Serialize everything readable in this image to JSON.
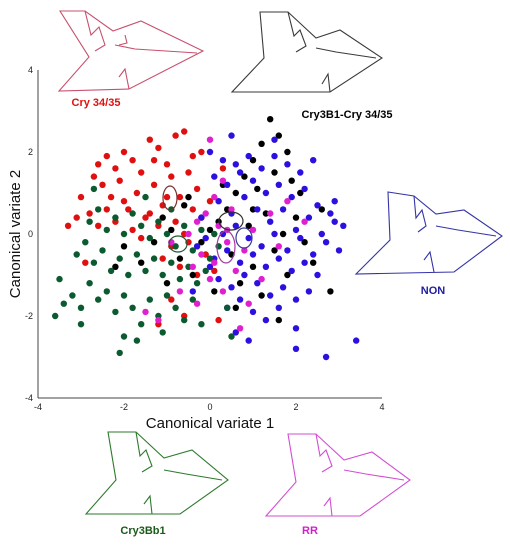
{
  "chart_data": {
    "type": "scatter",
    "title": "",
    "xlabel": "Canonical variate 1",
    "ylabel": "Canonical variate 2",
    "xlim": [
      -4,
      4
    ],
    "ylim": [
      -4,
      4
    ],
    "x_ticks": [
      "-4",
      "-2",
      "0",
      "2",
      "4"
    ],
    "y_ticks": [
      "4",
      "2",
      "0",
      "-2",
      "-4"
    ],
    "grid": false,
    "series": [
      {
        "name": "Cry 34/35",
        "color": "#e01010",
        "points": [
          [
            -2.6,
            1.7
          ],
          [
            -2.4,
            1.9
          ],
          [
            -2.2,
            1.6
          ],
          [
            -2.0,
            2.0
          ],
          [
            -1.8,
            1.8
          ],
          [
            -1.6,
            1.5
          ],
          [
            -1.4,
            2.3
          ],
          [
            -1.2,
            2.1
          ],
          [
            -1.0,
            1.7
          ],
          [
            -0.8,
            2.4
          ],
          [
            -0.6,
            2.5
          ],
          [
            -0.4,
            1.9
          ],
          [
            -2.5,
            1.2
          ],
          [
            -2.3,
            0.9
          ],
          [
            -2.1,
            1.3
          ],
          [
            -1.9,
            0.6
          ],
          [
            -1.7,
            1.0
          ],
          [
            -1.5,
            0.4
          ],
          [
            -1.3,
            1.2
          ],
          [
            -1.1,
            0.7
          ],
          [
            -0.9,
            1.4
          ],
          [
            -0.7,
            0.9
          ],
          [
            -0.5,
            1.5
          ],
          [
            -0.3,
            1.1
          ],
          [
            -3.0,
            0.9
          ],
          [
            -2.8,
            0.5
          ],
          [
            -2.6,
            0.2
          ],
          [
            -2.4,
            0.6
          ],
          [
            -2.2,
            0.3
          ],
          [
            -2.0,
            0.8
          ],
          [
            -1.8,
            0.1
          ],
          [
            -1.6,
            -0.1
          ],
          [
            -1.4,
            0.5
          ],
          [
            -1.2,
            0.2
          ],
          [
            -1.0,
            0.9
          ],
          [
            -0.8,
            0.3
          ],
          [
            -0.6,
            0.0
          ],
          [
            -0.4,
            0.6
          ],
          [
            -0.2,
            0.4
          ],
          [
            0.0,
            0.8
          ],
          [
            -1.1,
            -0.6
          ],
          [
            -0.9,
            -0.3
          ],
          [
            -0.7,
            -0.8
          ],
          [
            -0.5,
            -0.2
          ],
          [
            -0.3,
            -1.0
          ],
          [
            -0.1,
            -0.5
          ],
          [
            0.1,
            -0.9
          ],
          [
            -1.3,
            1.8
          ],
          [
            -0.2,
            2.0
          ],
          [
            -2.7,
            1.4
          ],
          [
            -3.3,
            0.2
          ],
          [
            -0.9,
            -1.6
          ],
          [
            -1.2,
            -2.2
          ],
          [
            0.2,
            -2.1
          ],
          [
            0.3,
            1.6
          ],
          [
            -0.6,
            -2.0
          ],
          [
            -2.9,
            -0.7
          ],
          [
            -3.1,
            0.4
          ]
        ]
      },
      {
        "name": "Cry3B1-Cry 34/35",
        "color": "#000000",
        "points": [
          [
            1.4,
            2.8
          ],
          [
            1.6,
            2.4
          ],
          [
            1.8,
            2.0
          ],
          [
            1.2,
            2.2
          ],
          [
            1.0,
            1.8
          ],
          [
            0.8,
            1.4
          ],
          [
            0.6,
            1.0
          ],
          [
            1.1,
            1.1
          ],
          [
            1.5,
            1.5
          ],
          [
            1.9,
            1.3
          ],
          [
            2.1,
            1.0
          ],
          [
            0.4,
            0.6
          ],
          [
            0.2,
            0.3
          ],
          [
            0.0,
            0.1
          ],
          [
            -0.2,
            -0.2
          ],
          [
            0.9,
            0.2
          ],
          [
            1.3,
            0.5
          ],
          [
            1.7,
            0.0
          ],
          [
            2.0,
            0.4
          ],
          [
            -0.6,
            0.7
          ],
          [
            -0.9,
            0.1
          ],
          [
            -1.1,
            0.4
          ],
          [
            -0.7,
            -0.6
          ],
          [
            -1.3,
            -0.2
          ],
          [
            0.5,
            -0.5
          ],
          [
            1.0,
            -0.8
          ],
          [
            1.5,
            -0.4
          ],
          [
            2.2,
            -0.2
          ],
          [
            0.7,
            -1.2
          ],
          [
            1.2,
            -1.5
          ],
          [
            1.8,
            -1.0
          ],
          [
            2.4,
            -0.7
          ],
          [
            -0.4,
            -1.0
          ],
          [
            0.1,
            -1.4
          ],
          [
            -1.6,
            -0.7
          ],
          [
            -2.0,
            -0.3
          ],
          [
            -0.5,
            0.9
          ],
          [
            0.3,
            1.2
          ],
          [
            2.6,
            0.6
          ],
          [
            1.6,
            -2.1
          ],
          [
            -1.0,
            -1.2
          ],
          [
            0.6,
            -1.8
          ],
          [
            2.8,
            -1.4
          ],
          [
            -2.2,
            -0.8
          ],
          [
            1.0,
            0.6
          ]
        ]
      },
      {
        "name": "NON",
        "color": "#2b10e0",
        "points": [
          [
            0.0,
            2.0
          ],
          [
            0.3,
            1.8
          ],
          [
            0.6,
            1.7
          ],
          [
            0.9,
            1.9
          ],
          [
            1.2,
            1.6
          ],
          [
            1.5,
            1.9
          ],
          [
            1.8,
            1.7
          ],
          [
            2.1,
            1.5
          ],
          [
            2.4,
            1.8
          ],
          [
            0.1,
            1.4
          ],
          [
            0.4,
            1.2
          ],
          [
            0.7,
            1.5
          ],
          [
            1.0,
            1.3
          ],
          [
            1.3,
            1.0
          ],
          [
            1.6,
            1.2
          ],
          [
            1.9,
            0.9
          ],
          [
            2.2,
            1.1
          ],
          [
            2.5,
            0.7
          ],
          [
            2.8,
            0.5
          ],
          [
            0.2,
            0.8
          ],
          [
            0.5,
            0.5
          ],
          [
            0.8,
            0.9
          ],
          [
            1.1,
            0.6
          ],
          [
            1.4,
            0.3
          ],
          [
            1.7,
            0.6
          ],
          [
            2.0,
            0.1
          ],
          [
            2.3,
            0.4
          ],
          [
            2.6,
            0.0
          ],
          [
            2.9,
            0.3
          ],
          [
            3.1,
            0.2
          ],
          [
            0.3,
            0.0
          ],
          [
            0.6,
            0.2
          ],
          [
            0.9,
            -0.1
          ],
          [
            1.2,
            -0.3
          ],
          [
            1.5,
            0.0
          ],
          [
            1.8,
            -0.4
          ],
          [
            2.1,
            -0.1
          ],
          [
            2.4,
            -0.5
          ],
          [
            2.7,
            -0.2
          ],
          [
            3.0,
            -0.4
          ],
          [
            0.1,
            -0.6
          ],
          [
            0.4,
            -0.4
          ],
          [
            0.7,
            -0.7
          ],
          [
            1.0,
            -0.5
          ],
          [
            1.3,
            -0.8
          ],
          [
            1.6,
            -0.6
          ],
          [
            1.9,
            -0.9
          ],
          [
            2.2,
            -0.7
          ],
          [
            2.5,
            -1.0
          ],
          [
            0.2,
            -1.1
          ],
          [
            0.5,
            -1.3
          ],
          [
            0.8,
            -1.0
          ],
          [
            1.1,
            -1.2
          ],
          [
            1.4,
            -1.5
          ],
          [
            1.7,
            -1.3
          ],
          [
            2.0,
            -1.6
          ],
          [
            2.3,
            -1.4
          ],
          [
            0.4,
            -1.8
          ],
          [
            0.7,
            -1.6
          ],
          [
            1.0,
            -1.9
          ],
          [
            1.3,
            -2.1
          ],
          [
            1.6,
            -1.8
          ],
          [
            2.0,
            -2.3
          ],
          [
            0.6,
            -2.4
          ],
          [
            -0.3,
            -0.3
          ],
          [
            -0.1,
            -0.1
          ],
          [
            -0.2,
            0.4
          ],
          [
            0.0,
            -0.8
          ],
          [
            -0.4,
            -1.4
          ],
          [
            0.9,
            -2.6
          ],
          [
            3.4,
            -2.6
          ],
          [
            2.7,
            -3.0
          ],
          [
            1.5,
            2.3
          ],
          [
            0.5,
            2.4
          ],
          [
            2.0,
            -2.8
          ],
          [
            2.9,
            0.8
          ]
        ]
      },
      {
        "name": "Cry3Bb1",
        "color": "#0b5a30",
        "points": [
          [
            -3.5,
            -1.1
          ],
          [
            -3.2,
            -1.5
          ],
          [
            -3.0,
            -1.8
          ],
          [
            -2.8,
            -1.2
          ],
          [
            -2.6,
            -1.6
          ],
          [
            -2.4,
            -1.4
          ],
          [
            -2.2,
            -1.9
          ],
          [
            -2.0,
            -1.5
          ],
          [
            -1.8,
            -1.8
          ],
          [
            -1.6,
            -2.2
          ],
          [
            -1.4,
            -1.6
          ],
          [
            -1.2,
            -2.0
          ],
          [
            -1.0,
            -1.5
          ],
          [
            -0.8,
            -1.8
          ],
          [
            -0.6,
            -2.1
          ],
          [
            -0.4,
            -1.6
          ],
          [
            -3.1,
            -0.5
          ],
          [
            -2.9,
            -0.2
          ],
          [
            -2.7,
            -0.7
          ],
          [
            -2.5,
            -0.4
          ],
          [
            -2.3,
            -0.9
          ],
          [
            -2.1,
            -0.6
          ],
          [
            -1.9,
            -1.0
          ],
          [
            -1.7,
            -0.5
          ],
          [
            -1.5,
            -0.9
          ],
          [
            -1.3,
            -0.6
          ],
          [
            -1.1,
            -1.0
          ],
          [
            -0.9,
            -0.7
          ],
          [
            -0.7,
            -1.1
          ],
          [
            -0.5,
            -0.8
          ],
          [
            -0.3,
            -1.2
          ],
          [
            -0.1,
            -0.9
          ],
          [
            -2.8,
            0.3
          ],
          [
            -2.6,
            0.6
          ],
          [
            -2.4,
            0.1
          ],
          [
            -2.2,
            0.4
          ],
          [
            -2.0,
            0.0
          ],
          [
            -1.8,
            0.5
          ],
          [
            -1.6,
            0.2
          ],
          [
            -1.4,
            -0.1
          ],
          [
            -1.2,
            0.3
          ],
          [
            -1.0,
            0.0
          ],
          [
            -0.8,
            -0.3
          ],
          [
            -0.6,
            0.2
          ],
          [
            -0.4,
            -0.4
          ],
          [
            -0.2,
            0.1
          ],
          [
            0.0,
            -0.6
          ],
          [
            0.2,
            -0.3
          ],
          [
            -3.4,
            -1.7
          ],
          [
            -2.1,
            -2.9
          ],
          [
            -2.0,
            -2.5
          ],
          [
            -1.1,
            -2.4
          ],
          [
            -0.2,
            -2.2
          ],
          [
            0.5,
            -2.5
          ],
          [
            0.4,
            -1.8
          ],
          [
            -3.6,
            -2.0
          ],
          [
            -2.7,
            1.1
          ],
          [
            -1.5,
            0.9
          ],
          [
            -0.9,
            0.6
          ],
          [
            0.1,
            0.0
          ],
          [
            -3.0,
            -2.2
          ],
          [
            -1.7,
            -2.6
          ]
        ]
      },
      {
        "name": "RR",
        "color": "#e020d0",
        "points": [
          [
            0.0,
            2.3
          ],
          [
            0.3,
            1.3
          ],
          [
            0.1,
            0.9
          ],
          [
            -0.1,
            0.5
          ],
          [
            0.2,
            0.2
          ],
          [
            0.4,
            -0.2
          ],
          [
            -0.2,
            -0.5
          ],
          [
            0.6,
            -0.9
          ],
          [
            0.0,
            -1.1
          ],
          [
            -0.4,
            -0.8
          ],
          [
            0.8,
            -0.4
          ],
          [
            1.0,
            0.1
          ],
          [
            -0.5,
            0.0
          ],
          [
            0.3,
            -1.4
          ],
          [
            -0.3,
            -1.7
          ],
          [
            1.2,
            -1.1
          ],
          [
            0.5,
            0.6
          ],
          [
            -0.7,
            -1.4
          ],
          [
            1.4,
            0.5
          ],
          [
            1.6,
            -0.3
          ],
          [
            -1.2,
            -2.1
          ],
          [
            0.9,
            -1.7
          ],
          [
            2.2,
            0.3
          ],
          [
            1.8,
            0.8
          ],
          [
            -0.9,
            -0.2
          ],
          [
            0.7,
            -2.3
          ],
          [
            -1.5,
            -1.9
          ],
          [
            0.1,
            -0.7
          ],
          [
            0.4,
            0.1
          ],
          [
            -0.3,
            0.3
          ]
        ]
      }
    ],
    "labels": {
      "cry3435": "Cry 34/35",
      "cry3b1cry3435": "Cry3B1-Cry 34/35",
      "non": "NON",
      "cry3bb1": "Cry3Bb1",
      "rr": "RR"
    },
    "ellipse_colors": {
      "cry3435": "#7a2e2e",
      "cry3b1cry3435": "#2f2f2f",
      "non": "#3a3a9a",
      "cry3bb1": "#1f5a36",
      "rr": "#a23aa2"
    },
    "outline_colors": {
      "cry3435": "#c8506e",
      "cry3b1cry3435": "#3a3a3a",
      "non": "#3434a8",
      "cry3bb1": "#2e7a2e",
      "rr": "#d24fd2"
    }
  }
}
